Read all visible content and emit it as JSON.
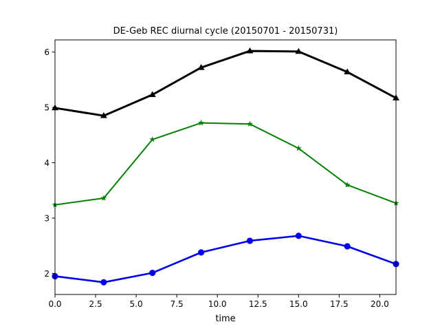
{
  "chart_data": {
    "type": "line",
    "title": "DE-Geb REC diurnal cycle (20150701 - 20150731)",
    "xlabel": "time",
    "ylabel": "",
    "xlim": [
      0,
      21
    ],
    "ylim": [
      1.62,
      6.22
    ],
    "x_ticks": [
      "0.0",
      "2.5",
      "5.0",
      "7.5",
      "10.0",
      "12.5",
      "15.0",
      "17.5",
      "20.0"
    ],
    "x_tick_values": [
      0,
      2.5,
      5,
      7.5,
      10,
      12.5,
      15,
      17.5,
      20
    ],
    "y_ticks": [
      "2",
      "3",
      "4",
      "5",
      "6"
    ],
    "y_tick_values": [
      2,
      3,
      4,
      5,
      6
    ],
    "grid": false,
    "x": [
      0,
      3,
      6,
      9,
      12,
      15,
      18,
      21
    ],
    "series": [
      {
        "color": "#000000",
        "marker": "triangle",
        "values": [
          4.99,
          4.85,
          5.23,
          5.72,
          6.02,
          6.01,
          5.64,
          5.17
        ]
      },
      {
        "color": "#008000",
        "marker": "star",
        "values": [
          3.24,
          3.36,
          4.42,
          4.72,
          4.7,
          4.26,
          3.6,
          3.27
        ]
      },
      {
        "color": "#0000ee",
        "marker": "circle",
        "values": [
          1.95,
          1.84,
          2.01,
          2.38,
          2.59,
          2.68,
          2.49,
          2.17
        ]
      }
    ]
  }
}
